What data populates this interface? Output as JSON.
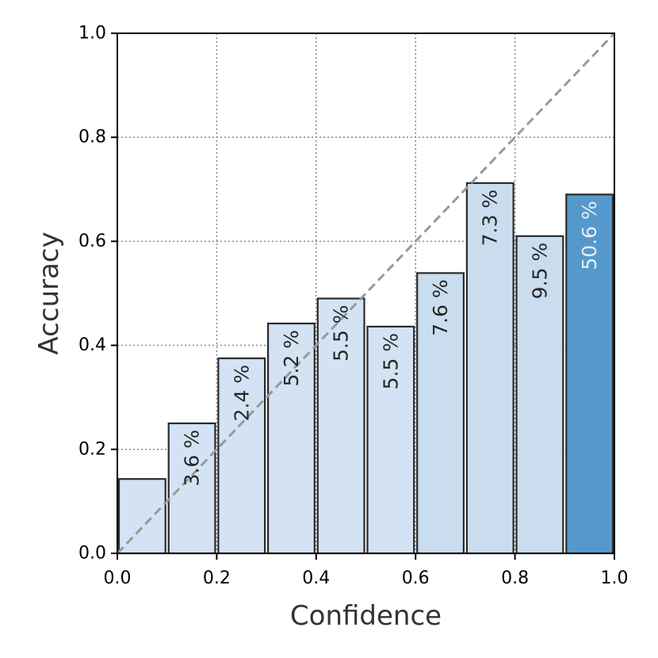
{
  "chart_data": {
    "type": "bar",
    "title": "",
    "xlabel": "Confidence",
    "ylabel": "Accuracy",
    "xlim": [
      0.0,
      1.0
    ],
    "ylim": [
      0.0,
      1.0
    ],
    "grid": true,
    "x_ticks": [
      "0.0",
      "0.2",
      "0.4",
      "0.6",
      "0.8",
      "1.0"
    ],
    "y_ticks": [
      "0.0",
      "0.2",
      "0.4",
      "0.6",
      "0.8",
      "1.0"
    ],
    "bins": [
      {
        "x": 0.05,
        "accuracy": 0.143,
        "share_percent": 0.0,
        "label": ""
      },
      {
        "x": 0.15,
        "accuracy": 0.25,
        "share_percent": 3.6,
        "label": "3.6 %"
      },
      {
        "x": 0.25,
        "accuracy": 0.375,
        "share_percent": 2.4,
        "label": "2.4 %"
      },
      {
        "x": 0.35,
        "accuracy": 0.442,
        "share_percent": 5.2,
        "label": "5.2 %"
      },
      {
        "x": 0.45,
        "accuracy": 0.49,
        "share_percent": 5.5,
        "label": "5.5 %"
      },
      {
        "x": 0.55,
        "accuracy": 0.436,
        "share_percent": 5.5,
        "label": "5.5 %"
      },
      {
        "x": 0.65,
        "accuracy": 0.539,
        "share_percent": 7.6,
        "label": "7.6 %"
      },
      {
        "x": 0.75,
        "accuracy": 0.712,
        "share_percent": 7.3,
        "label": "7.3 %"
      },
      {
        "x": 0.85,
        "accuracy": 0.61,
        "share_percent": 9.5,
        "label": "9.5 %"
      },
      {
        "x": 0.95,
        "accuracy": 0.69,
        "share_percent": 50.6,
        "label": "50.6 %"
      }
    ],
    "reference_line": {
      "x": [
        0.0,
        1.0
      ],
      "y": [
        0.0,
        1.0
      ],
      "style": "dashed",
      "color": "#999999"
    },
    "colors": {
      "light_bar": "#d3e3f3",
      "mid_bar": "#c9ddef",
      "dark_bar": "#5599cc",
      "bar_edge": "#2b2b2b",
      "label_dark": "#262626",
      "label_light": "#e8eef5"
    }
  }
}
